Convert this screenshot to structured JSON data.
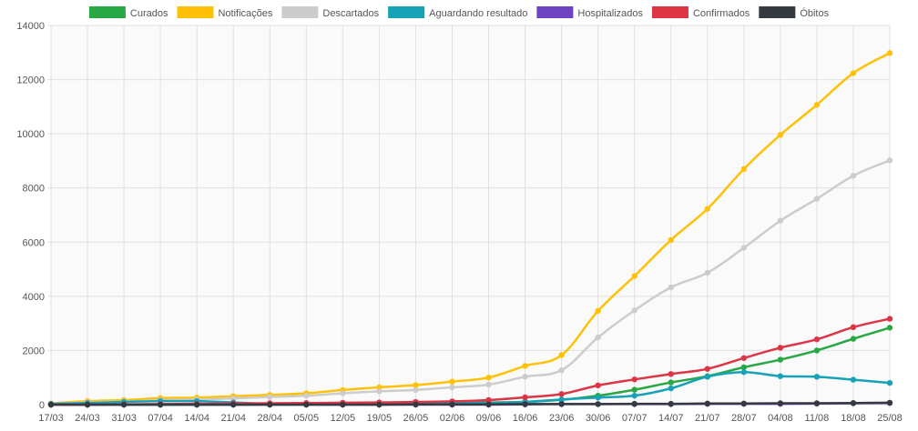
{
  "chart_data": {
    "type": "line",
    "categories": [
      "17/03",
      "24/03",
      "31/03",
      "07/04",
      "14/04",
      "21/04",
      "28/04",
      "05/05",
      "12/05",
      "19/05",
      "26/05",
      "02/06",
      "09/06",
      "16/06",
      "23/06",
      "30/06",
      "07/07",
      "14/07",
      "21/07",
      "28/07",
      "04/08",
      "11/08",
      "18/08",
      "25/08"
    ],
    "ylim": [
      0,
      14000
    ],
    "yticks": [
      0,
      2000,
      4000,
      6000,
      8000,
      10000,
      12000,
      14000
    ],
    "grid": true,
    "legend_position": "top",
    "series": [
      {
        "name": "Curados",
        "color": "#28a745",
        "values": [
          0,
          0,
          0,
          0,
          0,
          0,
          10,
          20,
          30,
          40,
          50,
          60,
          80,
          100,
          180,
          330,
          550,
          820,
          1050,
          1380,
          1660,
          2000,
          2430,
          2840
        ]
      },
      {
        "name": "Notificações",
        "color": "#ffc107",
        "values": [
          40,
          130,
          170,
          240,
          260,
          310,
          360,
          420,
          540,
          640,
          720,
          850,
          1000,
          1430,
          1830,
          3460,
          4750,
          6080,
          7230,
          8700,
          9960,
          11070,
          12240,
          12980
        ]
      },
      {
        "name": "Descartados",
        "color": "#cccccc",
        "values": [
          20,
          80,
          110,
          160,
          190,
          230,
          280,
          330,
          420,
          490,
          540,
          640,
          740,
          1030,
          1270,
          2480,
          3480,
          4330,
          4870,
          5790,
          6790,
          7600,
          8450,
          9020
        ]
      },
      {
        "name": "Aguardando resultado",
        "color": "#17a2b8",
        "values": [
          30,
          60,
          100,
          130,
          130,
          80,
          30,
          10,
          20,
          30,
          40,
          60,
          60,
          100,
          190,
          260,
          330,
          600,
          1030,
          1200,
          1050,
          1030,
          920,
          800
        ]
      },
      {
        "name": "Hospitalizados",
        "color": "#6f42c1",
        "values": [
          0,
          0,
          0,
          0,
          0,
          0,
          0,
          0,
          0,
          0,
          0,
          0,
          0,
          10,
          20,
          20,
          20,
          20,
          30,
          30,
          30,
          40,
          50,
          60
        ]
      },
      {
        "name": "Confirmados",
        "color": "#dc3545",
        "values": [
          0,
          0,
          10,
          20,
          30,
          40,
          50,
          60,
          70,
          80,
          100,
          120,
          170,
          270,
          390,
          710,
          930,
          1130,
          1320,
          1720,
          2100,
          2410,
          2860,
          3170
        ]
      },
      {
        "name": "Óbitos",
        "color": "#343a40",
        "values": [
          0,
          0,
          0,
          0,
          0,
          0,
          0,
          0,
          0,
          0,
          10,
          10,
          10,
          20,
          20,
          20,
          30,
          30,
          40,
          40,
          50,
          50,
          60,
          70
        ]
      }
    ]
  }
}
